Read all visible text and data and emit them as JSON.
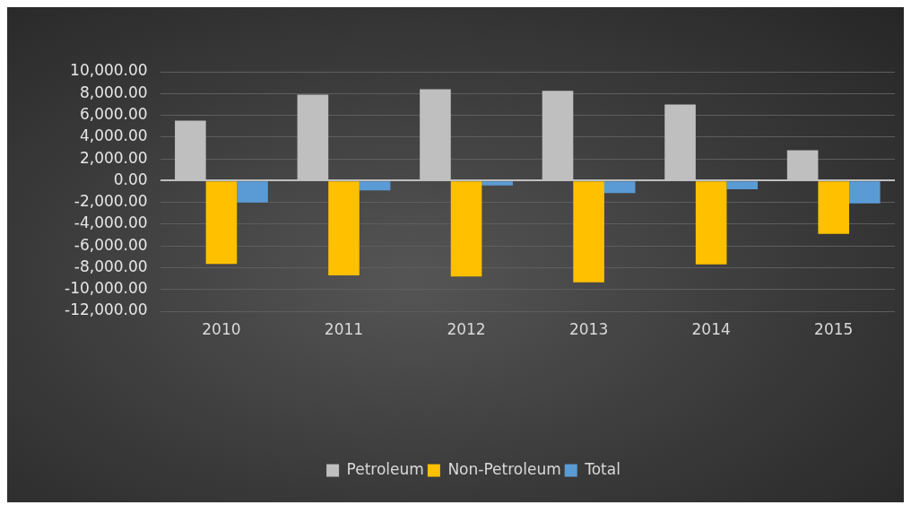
{
  "chart_data": {
    "type": "bar",
    "categories": [
      "2010",
      "2011",
      "2012",
      "2013",
      "2014",
      "2015"
    ],
    "series": [
      {
        "name": "Petroleum",
        "color": "#bfbfbf",
        "values": [
          5500,
          7900,
          8400,
          8250,
          7000,
          2800
        ]
      },
      {
        "name": "Non-Petroleum",
        "color": "#ffc000",
        "values": [
          -7650,
          -8700,
          -8800,
          -9350,
          -7700,
          -4900
        ]
      },
      {
        "name": "Total",
        "color": "#5b9bd5",
        "values": [
          -2000,
          -900,
          -450,
          -1150,
          -800,
          -2100
        ]
      }
    ],
    "ylim": [
      -12000,
      10000
    ],
    "yticks": [
      {
        "value": -12000,
        "label": "-12,000.00"
      },
      {
        "value": -10000,
        "label": "-10,000.00"
      },
      {
        "value": -8000,
        "label": "-8,000.00"
      },
      {
        "value": -6000,
        "label": "-6,000.00"
      },
      {
        "value": -4000,
        "label": "-4,000.00"
      },
      {
        "value": -2000,
        "label": "-2,000.00"
      },
      {
        "value": 0,
        "label": "0.00"
      },
      {
        "value": 2000,
        "label": "2,000.00"
      },
      {
        "value": 4000,
        "label": "4,000.00"
      },
      {
        "value": 6000,
        "label": "6,000.00"
      },
      {
        "value": 8000,
        "label": "8,000.00"
      },
      {
        "value": 10000,
        "label": "10,000.00"
      }
    ],
    "grid": "y",
    "legend": "bottom"
  }
}
